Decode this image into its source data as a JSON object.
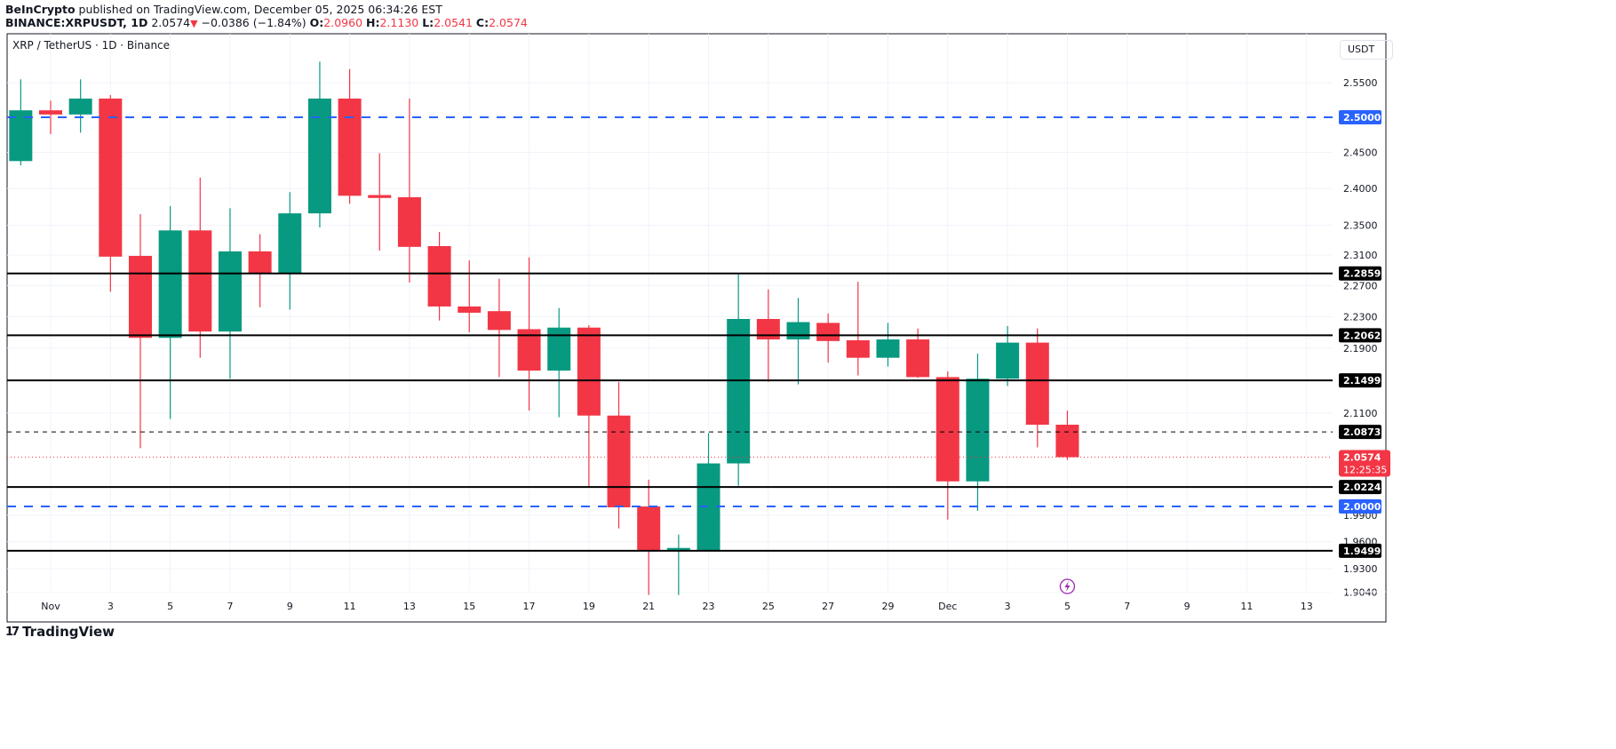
{
  "header": {
    "publisher": "BeInCrypto",
    "published_text": "published on TradingView.com, December 05, 2025 06:34:26 EST",
    "symbol": "BINANCE:XRPUSDT, 1D",
    "last": "2.0574",
    "change": "−0.0386 (−1.84%)",
    "o_label": "O:",
    "o": "2.0960",
    "h_label": "H:",
    "h": "2.1130",
    "l_label": "L:",
    "l": "2.0541",
    "c_label": "C:",
    "c": "2.0574"
  },
  "legend_title": "XRP / TetherUS · 1D · Binance",
  "currency_button": "USDT",
  "footer_logo": "TradingView",
  "colors": {
    "up": "#089981",
    "down": "#f23645",
    "blue_level": "#2962ff",
    "level": "#000000",
    "grid": "#f0f3fa"
  },
  "chart_data": {
    "type": "candlestick",
    "scale": "log",
    "ylim": [
      1.895,
      2.6
    ],
    "grid": true,
    "y_ticks": [
      "2.5500",
      "2.4500",
      "2.4000",
      "2.3500",
      "2.3100",
      "2.2700",
      "2.2300",
      "2.1900",
      "2.1100",
      "1.9900",
      "1.9600",
      "1.9300",
      "1.9040"
    ],
    "x_ticks": [
      {
        "label": "Nov",
        "date": "2025-11-01"
      },
      {
        "label": "3",
        "date": "2025-11-03"
      },
      {
        "label": "5",
        "date": "2025-11-05"
      },
      {
        "label": "7",
        "date": "2025-11-07"
      },
      {
        "label": "9",
        "date": "2025-11-09"
      },
      {
        "label": "11",
        "date": "2025-11-11"
      },
      {
        "label": "13",
        "date": "2025-11-13"
      },
      {
        "label": "15",
        "date": "2025-11-15"
      },
      {
        "label": "17",
        "date": "2025-11-17"
      },
      {
        "label": "19",
        "date": "2025-11-19"
      },
      {
        "label": "21",
        "date": "2025-11-21"
      },
      {
        "label": "23",
        "date": "2025-11-23"
      },
      {
        "label": "25",
        "date": "2025-11-25"
      },
      {
        "label": "27",
        "date": "2025-11-27"
      },
      {
        "label": "29",
        "date": "2025-11-29"
      },
      {
        "label": "Dec",
        "date": "2025-12-01"
      },
      {
        "label": "3",
        "date": "2025-12-03"
      },
      {
        "label": "5",
        "date": "2025-12-05"
      },
      {
        "label": "7",
        "date": "2025-12-07"
      },
      {
        "label": "9",
        "date": "2025-12-09"
      },
      {
        "label": "11",
        "date": "2025-12-11"
      },
      {
        "label": "13",
        "date": "2025-12-13"
      }
    ],
    "candles": [
      {
        "date": "2025-10-31",
        "o": 2.438,
        "h": 2.555,
        "l": 2.432,
        "c": 2.51
      },
      {
        "date": "2025-11-01",
        "o": 2.51,
        "h": 2.524,
        "l": 2.476,
        "c": 2.504
      },
      {
        "date": "2025-11-02",
        "o": 2.504,
        "h": 2.555,
        "l": 2.478,
        "c": 2.527
      },
      {
        "date": "2025-11-03",
        "o": 2.527,
        "h": 2.532,
        "l": 2.262,
        "c": 2.308
      },
      {
        "date": "2025-11-04",
        "o": 2.309,
        "h": 2.365,
        "l": 2.068,
        "c": 2.203
      },
      {
        "date": "2025-11-05",
        "o": 2.203,
        "h": 2.376,
        "l": 2.103,
        "c": 2.343
      },
      {
        "date": "2025-11-06",
        "o": 2.343,
        "h": 2.415,
        "l": 2.178,
        "c": 2.211
      },
      {
        "date": "2025-11-07",
        "o": 2.211,
        "h": 2.373,
        "l": 2.152,
        "c": 2.315
      },
      {
        "date": "2025-11-08",
        "o": 2.315,
        "h": 2.338,
        "l": 2.242,
        "c": 2.286
      },
      {
        "date": "2025-11-09",
        "o": 2.286,
        "h": 2.395,
        "l": 2.239,
        "c": 2.366
      },
      {
        "date": "2025-11-10",
        "o": 2.366,
        "h": 2.581,
        "l": 2.347,
        "c": 2.527
      },
      {
        "date": "2025-11-11",
        "o": 2.527,
        "h": 2.57,
        "l": 2.379,
        "c": 2.39
      },
      {
        "date": "2025-11-12",
        "o": 2.391,
        "h": 2.449,
        "l": 2.316,
        "c": 2.387
      },
      {
        "date": "2025-11-13",
        "o": 2.388,
        "h": 2.527,
        "l": 2.274,
        "c": 2.321
      },
      {
        "date": "2025-11-14",
        "o": 2.322,
        "h": 2.341,
        "l": 2.225,
        "c": 2.243
      },
      {
        "date": "2025-11-15",
        "o": 2.243,
        "h": 2.303,
        "l": 2.21,
        "c": 2.235
      },
      {
        "date": "2025-11-16",
        "o": 2.237,
        "h": 2.279,
        "l": 2.154,
        "c": 2.213
      },
      {
        "date": "2025-11-17",
        "o": 2.214,
        "h": 2.307,
        "l": 2.113,
        "c": 2.162
      },
      {
        "date": "2025-11-18",
        "o": 2.162,
        "h": 2.241,
        "l": 2.105,
        "c": 2.216
      },
      {
        "date": "2025-11-19",
        "o": 2.216,
        "h": 2.219,
        "l": 2.023,
        "c": 2.107
      },
      {
        "date": "2025-11-20",
        "o": 2.107,
        "h": 2.148,
        "l": 1.975,
        "c": 1.999
      },
      {
        "date": "2025-11-21",
        "o": 2.0,
        "h": 2.031,
        "l": 1.901,
        "c": 1.95
      },
      {
        "date": "2025-11-22",
        "o": 1.95,
        "h": 1.968,
        "l": 1.901,
        "c": 1.953
      },
      {
        "date": "2025-11-23",
        "o": 1.95,
        "h": 2.086,
        "l": 1.949,
        "c": 2.05
      },
      {
        "date": "2025-11-24",
        "o": 2.05,
        "h": 2.285,
        "l": 2.024,
        "c": 2.227
      },
      {
        "date": "2025-11-25",
        "o": 2.227,
        "h": 2.265,
        "l": 2.148,
        "c": 2.201
      },
      {
        "date": "2025-11-26",
        "o": 2.201,
        "h": 2.254,
        "l": 2.145,
        "c": 2.223
      },
      {
        "date": "2025-11-27",
        "o": 2.222,
        "h": 2.234,
        "l": 2.172,
        "c": 2.199
      },
      {
        "date": "2025-11-28",
        "o": 2.2,
        "h": 2.275,
        "l": 2.156,
        "c": 2.178
      },
      {
        "date": "2025-11-29",
        "o": 2.178,
        "h": 2.222,
        "l": 2.167,
        "c": 2.201
      },
      {
        "date": "2025-11-30",
        "o": 2.201,
        "h": 2.215,
        "l": 2.153,
        "c": 2.154
      },
      {
        "date": "2025-12-01",
        "o": 2.154,
        "h": 2.161,
        "l": 1.985,
        "c": 2.029
      },
      {
        "date": "2025-12-02",
        "o": 2.029,
        "h": 2.183,
        "l": 1.995,
        "c": 2.152
      },
      {
        "date": "2025-12-03",
        "o": 2.152,
        "h": 2.218,
        "l": 2.143,
        "c": 2.197
      },
      {
        "date": "2025-12-04",
        "o": 2.197,
        "h": 2.215,
        "l": 2.069,
        "c": 2.096
      },
      {
        "date": "2025-12-05",
        "o": 2.096,
        "h": 2.113,
        "l": 2.0541,
        "c": 2.0574
      }
    ],
    "levels": [
      {
        "price": 2.5,
        "label": "2.5000",
        "style": "dashed",
        "color": "#2962ff"
      },
      {
        "price": 2.2859,
        "label": "2.2859",
        "style": "solid",
        "color": "#000000"
      },
      {
        "price": 2.2062,
        "label": "2.2062",
        "style": "solid",
        "color": "#000000"
      },
      {
        "price": 2.1499,
        "label": "2.1499",
        "style": "solid",
        "color": "#000000"
      },
      {
        "price": 2.0873,
        "label": "2.0873",
        "style": "dashed-thin",
        "color": "#000000"
      },
      {
        "price": 2.0224,
        "label": "2.0224",
        "style": "solid",
        "color": "#000000"
      },
      {
        "price": 2.0,
        "label": "2.0000",
        "style": "dashed",
        "color": "#2962ff"
      },
      {
        "price": 1.9499,
        "label": "1.9499",
        "style": "solid",
        "color": "#000000"
      }
    ],
    "last_price": {
      "price": 2.0574,
      "label": "2.0574",
      "countdown": "12:25:35",
      "color": "#f23645"
    },
    "event_icon": {
      "date": "2025-12-05",
      "icon": "lightning-icon"
    }
  }
}
